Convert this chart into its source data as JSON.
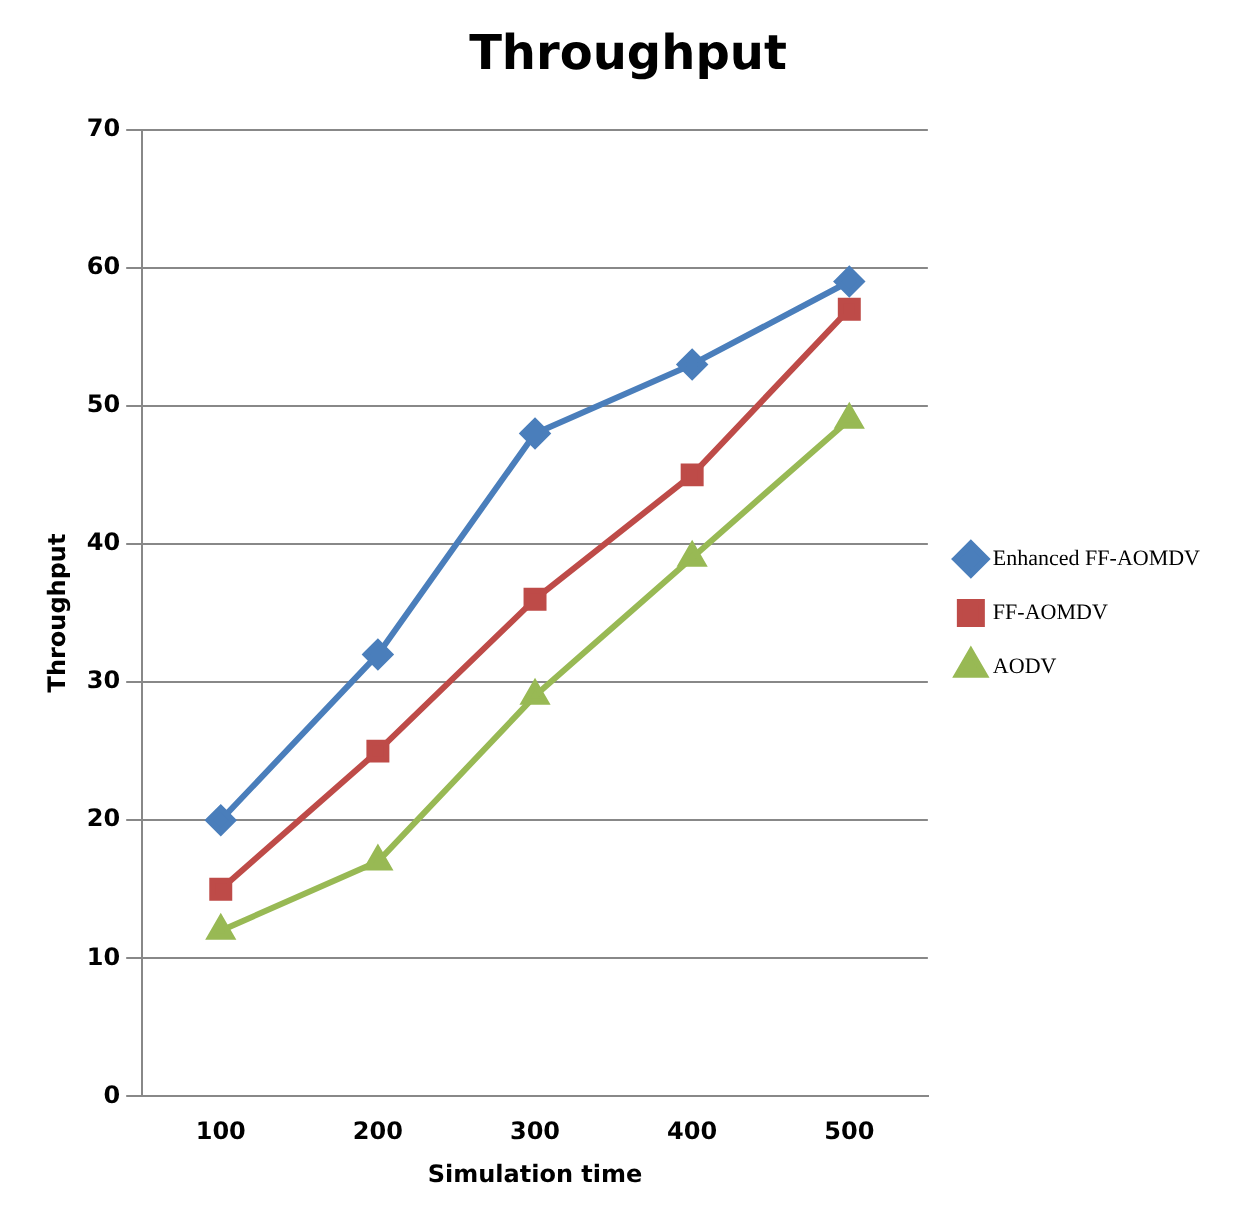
{
  "chart_data": {
    "type": "line",
    "title": "Throughput",
    "xlabel": "Simulation time",
    "ylabel": "Throughput",
    "categories": [
      "100",
      "200",
      "300",
      "400",
      "500"
    ],
    "series": [
      {
        "name": "Enhanced FF-AOMDV",
        "color": "#4a7ebb",
        "marker": "diamond",
        "values": [
          20,
          32,
          48,
          53,
          59
        ]
      },
      {
        "name": "FF-AOMDV",
        "color": "#be4b48",
        "marker": "square",
        "values": [
          15,
          25,
          36,
          45,
          57
        ]
      },
      {
        "name": "AODV",
        "color": "#98b954",
        "marker": "triangle",
        "values": [
          12,
          17,
          29,
          39,
          49
        ]
      }
    ],
    "ylim": [
      0,
      70
    ],
    "yticks": [
      0,
      10,
      20,
      30,
      40,
      50,
      60,
      70
    ],
    "grid": "y",
    "legend": "right"
  }
}
